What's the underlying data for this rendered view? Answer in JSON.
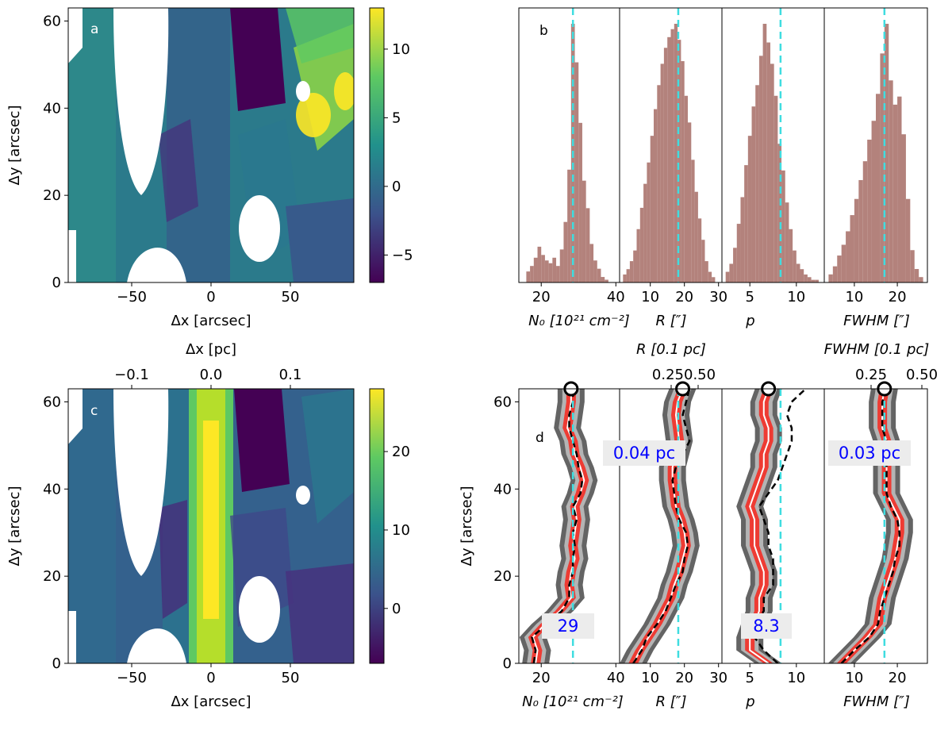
{
  "chart_data": [
    {
      "panel": "a",
      "type": "heatmap",
      "xlabel": "Δx [arcsec]",
      "ylabel": "Δy [arcsec]",
      "xlim": [
        -90,
        90
      ],
      "ylim": [
        0,
        63
      ],
      "xticks": [
        -50,
        0,
        50
      ],
      "yticks": [
        0,
        20,
        40,
        60
      ],
      "colorbar": {
        "range": [
          -7,
          13
        ],
        "ticks": [
          -5,
          0,
          5,
          10
        ],
        "tick_labels": [
          "−5",
          "0",
          "5",
          "10"
        ],
        "colormap": "viridis"
      }
    },
    {
      "panel": "b",
      "type": "bar",
      "label": "b",
      "subpanels": [
        {
          "id": "N0",
          "xlabel": "N_0 [10^21 cm^-2]",
          "xlim": [
            14,
            41
          ],
          "xticks": [
            20,
            40
          ],
          "median": 28.5,
          "bins": [
            16.5,
            17.5,
            18.5,
            19.5,
            20.5,
            21.5,
            22.5,
            23.5,
            24.5,
            25.5,
            26.5,
            27.5,
            28.5,
            29.5,
            30.5,
            31.5,
            32.5,
            33.5,
            34.5,
            35.5,
            36.5,
            37.5
          ],
          "counts": [
            4,
            6,
            9,
            13,
            10,
            8,
            7,
            9,
            6,
            12,
            22,
            41,
            94,
            80,
            58,
            37,
            27,
            14,
            8,
            5,
            2,
            1
          ]
        },
        {
          "id": "R",
          "xlabel": "R [″]",
          "xlim": [
            1,
            31
          ],
          "xticks": [
            10,
            20,
            30
          ],
          "median": 18.2,
          "bins": [
            2.5,
            3.5,
            4.5,
            5.5,
            6.5,
            7.5,
            8.5,
            9.5,
            10.5,
            11.5,
            12.5,
            13.5,
            14.5,
            15.5,
            16.5,
            17.5,
            18.5,
            19.5,
            20.5,
            21.5,
            22.5,
            23.5,
            24.5,
            25.5,
            26.5,
            27.5,
            28.5
          ],
          "counts": [
            3,
            5,
            8,
            12,
            20,
            28,
            37,
            45,
            55,
            65,
            74,
            82,
            88,
            92,
            95,
            97,
            91,
            83,
            70,
            60,
            46,
            34,
            24,
            16,
            8,
            4,
            2
          ]
        },
        {
          "id": "p",
          "xlabel": "p",
          "xlim": [
            2,
            13
          ],
          "xticks": [
            5,
            10
          ],
          "median": 8.3,
          "bins": [
            2.6,
            3.0,
            3.4,
            3.8,
            4.2,
            4.6,
            5.0,
            5.4,
            5.8,
            6.2,
            6.6,
            7.0,
            7.4,
            7.8,
            8.2,
            8.6,
            9.0,
            9.4,
            9.8,
            10.2,
            10.6,
            11.0,
            11.4,
            11.8,
            12.2
          ],
          "counts": [
            4,
            7,
            13,
            22,
            32,
            44,
            55,
            66,
            74,
            85,
            97,
            90,
            82,
            70,
            52,
            42,
            30,
            20,
            12,
            7,
            5,
            3,
            2,
            1,
            1
          ]
        },
        {
          "id": "FWHM",
          "xlabel": "FWHM [″]",
          "xlim": [
            3,
            27
          ],
          "xticks": [
            10,
            20
          ],
          "median": 17.0,
          "bins": [
            4.5,
            5.5,
            6.5,
            7.5,
            8.5,
            9.5,
            10.5,
            11.5,
            12.5,
            13.5,
            14.5,
            15.5,
            16.5,
            17.5,
            18.5,
            19.5,
            20.5,
            21.5,
            22.5,
            23.5,
            24.5,
            25.5
          ],
          "counts": [
            3,
            6,
            10,
            14,
            19,
            25,
            31,
            38,
            45,
            53,
            60,
            70,
            85,
            96,
            75,
            66,
            69,
            55,
            31,
            12,
            5,
            2
          ]
        }
      ]
    },
    {
      "panel": "c",
      "type": "heatmap",
      "xlabel": "Δx [arcsec]",
      "ylabel": "Δy [arcsec]",
      "top_xlabel": "Δx [pc]",
      "top_xticks": [
        -0.1,
        0.0,
        0.1
      ],
      "top_xtick_labels": [
        "−0.1",
        "0.0",
        "0.1"
      ],
      "xlim": [
        -90,
        90
      ],
      "ylim": [
        0,
        63
      ],
      "xticks": [
        -50,
        0,
        50
      ],
      "yticks": [
        0,
        20,
        40,
        60
      ],
      "colorbar": {
        "range": [
          -7,
          28
        ],
        "ticks": [
          0,
          10,
          20
        ],
        "tick_labels": [
          "0",
          "10",
          "20"
        ],
        "colormap": "viridis"
      }
    },
    {
      "panel": "d",
      "type": "line",
      "label": "d",
      "ylabel": "Δy [arcsec]",
      "ylim": [
        0,
        63
      ],
      "yticks": [
        0,
        20,
        40,
        60
      ],
      "y": [
        0,
        3,
        6,
        9,
        12,
        15,
        18,
        21,
        24,
        27,
        30,
        33,
        36,
        39,
        42,
        45,
        48,
        51,
        54,
        57,
        60,
        63
      ],
      "subpanels": [
        {
          "id": "N0",
          "xlabel": "N_0 [10^21 cm^-2]",
          "xlim": [
            14,
            41
          ],
          "xticks": [
            20,
            40
          ],
          "median": 28.5,
          "annotation": "29",
          "profile": [
            18.5,
            19.0,
            17.8,
            21.0,
            25.0,
            28.0,
            27.5,
            28.0,
            29.0,
            28.5,
            29.0,
            29.5,
            29.0,
            30.5,
            31.5,
            30.5,
            29.0,
            28.5,
            27.0,
            27.5,
            28.0,
            28.0
          ],
          "dashed": [
            18.0,
            18.5,
            17.5,
            21.5,
            25.5,
            27.5,
            27.5,
            28.5,
            28.5,
            29.0,
            28.5,
            29.5,
            28.5,
            30.5,
            31.0,
            30.0,
            29.5,
            28.5,
            27.5,
            27.5,
            28.5,
            28.5
          ]
        },
        {
          "id": "R",
          "xlabel": "R [″]",
          "top_xlabel": "R [0.1 pc]",
          "top_xticks": [
            "0.25",
            "0.50"
          ],
          "xlim": [
            1,
            31
          ],
          "xticks": [
            10,
            20,
            30
          ],
          "median": 18.2,
          "annotation": "0.04 pc",
          "profile": [
            5.0,
            7.0,
            9.5,
            12.0,
            14.0,
            16.0,
            17.0,
            18.5,
            19.5,
            20.5,
            20.0,
            19.0,
            17.5,
            17.0,
            16.5,
            16.5,
            17.5,
            18.5,
            18.0,
            17.5,
            18.0,
            19.5
          ],
          "dashed": [
            5.0,
            7.5,
            9.0,
            12.0,
            14.5,
            16.0,
            17.5,
            19.5,
            20.0,
            21.0,
            20.5,
            18.5,
            17.5,
            17.0,
            16.5,
            17.5,
            19.5,
            21.5,
            20.5,
            19.5,
            20.5,
            21.5
          ]
        },
        {
          "id": "p",
          "xlabel": "p",
          "xlim": [
            2,
            13
          ],
          "xticks": [
            5,
            10
          ],
          "median": 8.3,
          "annotation": "8.3",
          "profile": [
            7.0,
            5.0,
            5.0,
            5.5,
            6.0,
            6.0,
            6.5,
            6.5,
            6.0,
            5.5,
            5.5,
            5.5,
            5.0,
            5.5,
            6.0,
            6.5,
            6.5,
            7.0,
            7.0,
            6.5,
            6.5,
            7.0
          ],
          "dashed": [
            8.0,
            6.5,
            5.5,
            5.5,
            6.5,
            6.5,
            7.5,
            7.5,
            7.5,
            7.0,
            7.0,
            6.5,
            6.0,
            7.0,
            8.0,
            8.5,
            9.0,
            9.5,
            9.5,
            9.0,
            9.5,
            11.0
          ]
        },
        {
          "id": "FWHM",
          "xlabel": "FWHM [″]",
          "top_xlabel": "FWHM [0.1 pc]",
          "top_xticks": [
            "0.25",
            "0.50"
          ],
          "xlim": [
            3,
            27
          ],
          "xticks": [
            10,
            20
          ],
          "median": 17.0,
          "annotation": "0.03 pc",
          "profile": [
            7.0,
            10.0,
            13.0,
            15.5,
            16.0,
            16.5,
            17.5,
            18.5,
            19.5,
            20.0,
            20.5,
            20.5,
            19.0,
            17.5,
            17.5,
            17.5,
            17.5,
            17.5,
            16.5,
            16.5,
            16.5,
            17.0
          ],
          "dashed": [
            7.0,
            10.0,
            13.5,
            15.5,
            16.0,
            17.0,
            18.0,
            19.0,
            19.5,
            20.5,
            20.5,
            20.0,
            18.5,
            17.5,
            17.5,
            17.5,
            17.5,
            17.5,
            16.5,
            16.5,
            16.5,
            17.5
          ]
        }
      ]
    }
  ],
  "colors": {
    "hist": "#b3827c",
    "median": "#3fdde0",
    "band_outer": "#646464",
    "band_inner": "#b4b4b4",
    "band_core": "#ee3b33",
    "profile": "#ffffff",
    "dashed": "#000000",
    "annotation_text": "#0000ff",
    "annotation_box": "#ececec"
  },
  "labels": {
    "a": "a",
    "b": "b",
    "c": "c",
    "d": "d"
  }
}
